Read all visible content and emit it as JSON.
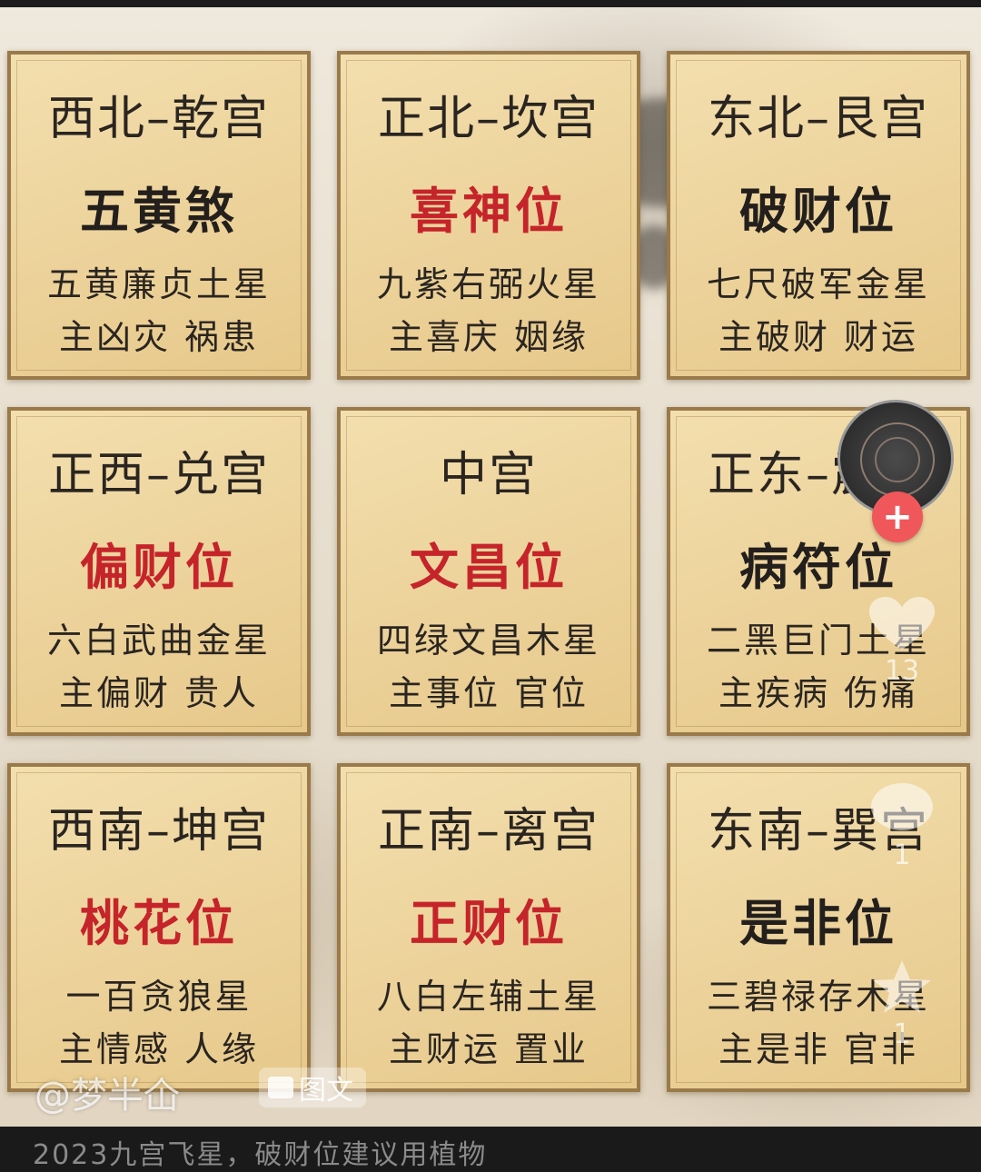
{
  "cards": [
    {
      "title": "西北–乾宫",
      "position": "五黄煞",
      "highlight": false,
      "star": "五黄廉贞土星",
      "rule": "主凶灾 祸患"
    },
    {
      "title": "正北–坎宫",
      "position": "喜神位",
      "highlight": true,
      "star": "九紫右弼火星",
      "rule": "主喜庆 姻缘"
    },
    {
      "title": "东北–艮宫",
      "position": "破财位",
      "highlight": false,
      "star": "七尺破军金星",
      "rule": "主破财 财运"
    },
    {
      "title": "正西–兑宫",
      "position": "偏财位",
      "highlight": true,
      "star": "六白武曲金星",
      "rule": "主偏财 贵人"
    },
    {
      "title": "中宫",
      "position": "文昌位",
      "highlight": true,
      "star": "四绿文昌木星",
      "rule": "主事位 官位"
    },
    {
      "title": "正东–震宫",
      "position": "病符位",
      "highlight": false,
      "star": "二黑巨门土星",
      "rule": "主疾病 伤痛"
    },
    {
      "title": "西南–坤宫",
      "position": "桃花位",
      "highlight": true,
      "star": "一百贪狼星",
      "rule": "主情感 人缘"
    },
    {
      "title": "正南–离宫",
      "position": "正财位",
      "highlight": true,
      "star": "八白左辅土星",
      "rule": "主财运 置业"
    },
    {
      "title": "东南–巽宫",
      "position": "是非位",
      "highlight": false,
      "star": "三碧禄存木星",
      "rule": "主是非 官非"
    }
  ],
  "overlay": {
    "watermark": "@梦半仚",
    "tag_label": "图文",
    "follow_symbol": "+",
    "like_count": "13",
    "comment_count": "1",
    "star_count": "1"
  },
  "caption_partial": "2023九宫飞星，破财位建议用植物",
  "colors": {
    "highlight": "#c5242a",
    "normal": "#231f1c",
    "card_bg": "#efd9a4",
    "card_border": "#9a7a4a",
    "follow": "#f0575b"
  }
}
